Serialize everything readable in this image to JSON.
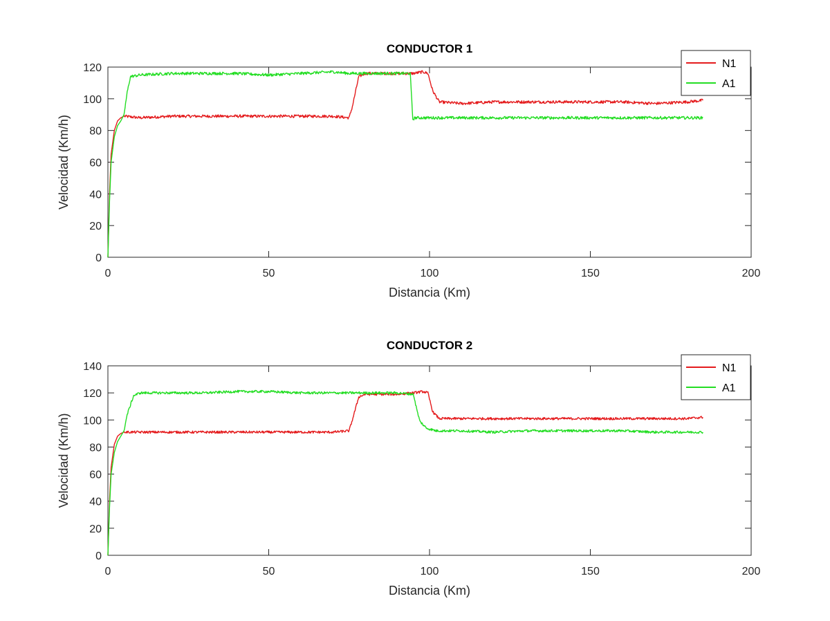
{
  "chart_data": [
    {
      "type": "line",
      "title": "CONDUCTOR 1",
      "xlabel": "Distancia (Km)",
      "ylabel": "Velocidad (Km/h)",
      "xlim": [
        0,
        200
      ],
      "ylim": [
        0,
        120
      ],
      "xticks": [
        "0",
        "50",
        "100",
        "150",
        "200"
      ],
      "yticks": [
        "0",
        "20",
        "40",
        "60",
        "80",
        "100",
        "120"
      ],
      "legend_position": "top-right",
      "grid": false,
      "series": [
        {
          "name": "N1",
          "color": "#e41a1c",
          "x": [
            0,
            0.5,
            1,
            2,
            3,
            4,
            5,
            10,
            20,
            30,
            40,
            50,
            60,
            70,
            75,
            76,
            78,
            80,
            90,
            95,
            98,
            99.5,
            101,
            103,
            110,
            120,
            130,
            140,
            150,
            160,
            170,
            180,
            185
          ],
          "y": [
            0,
            40,
            65,
            80,
            86,
            88,
            89,
            88,
            89,
            89,
            89,
            89,
            89,
            89,
            88,
            95,
            114,
            116,
            116,
            116,
            117,
            116,
            105,
            98,
            97,
            98,
            98,
            98,
            98,
            98,
            97,
            98,
            99
          ]
        },
        {
          "name": "A1",
          "color": "#22dd22",
          "x": [
            0,
            0.5,
            1,
            2,
            3,
            4,
            5,
            6,
            7,
            10,
            20,
            30,
            40,
            50,
            60,
            70,
            75,
            80,
            90,
            94,
            94.8,
            95.5,
            100,
            110,
            120,
            130,
            140,
            150,
            160,
            170,
            180,
            185
          ],
          "y": [
            0,
            35,
            60,
            76,
            83,
            86,
            90,
            104,
            114,
            115,
            116,
            116,
            116,
            115,
            116,
            117,
            116,
            116,
            116,
            116,
            87,
            88,
            88,
            88,
            88,
            88,
            88,
            88,
            88,
            88,
            88,
            88
          ]
        }
      ]
    },
    {
      "type": "line",
      "title": "CONDUCTOR 2",
      "xlabel": "Distancia (Km)",
      "ylabel": "Velocidad (Km/h)",
      "xlim": [
        0,
        200
      ],
      "ylim": [
        0,
        140
      ],
      "xticks": [
        "0",
        "50",
        "100",
        "150",
        "200"
      ],
      "yticks": [
        "0",
        "20",
        "40",
        "60",
        "80",
        "100",
        "120",
        "140"
      ],
      "legend_position": "top-right",
      "grid": false,
      "series": [
        {
          "name": "N1",
          "color": "#e41a1c",
          "x": [
            0,
            0.5,
            1,
            2,
            3,
            4,
            5,
            10,
            20,
            30,
            40,
            50,
            60,
            70,
            75,
            76,
            78,
            80,
            90,
            95,
            98,
            99.5,
            101,
            103,
            110,
            120,
            130,
            140,
            150,
            160,
            170,
            180,
            185
          ],
          "y": [
            0,
            40,
            65,
            82,
            88,
            90,
            91,
            91,
            91,
            91,
            91,
            91,
            91,
            91,
            92,
            100,
            117,
            119,
            119,
            120,
            121,
            120,
            106,
            101,
            101,
            101,
            101,
            101,
            101,
            101,
            101,
            101,
            102
          ]
        },
        {
          "name": "A1",
          "color": "#22dd22",
          "x": [
            0,
            0.5,
            1,
            2,
            3,
            4,
            5,
            6,
            8,
            10,
            20,
            30,
            40,
            50,
            60,
            70,
            80,
            90,
            95,
            96,
            97,
            99,
            102,
            110,
            120,
            130,
            140,
            150,
            160,
            170,
            180,
            185
          ],
          "y": [
            0,
            35,
            60,
            76,
            84,
            88,
            92,
            104,
            118,
            120,
            120,
            120,
            121,
            121,
            120,
            120,
            120,
            120,
            119,
            108,
            99,
            94,
            92,
            92,
            91,
            92,
            92,
            92,
            92,
            91,
            91,
            91
          ]
        }
      ]
    }
  ]
}
